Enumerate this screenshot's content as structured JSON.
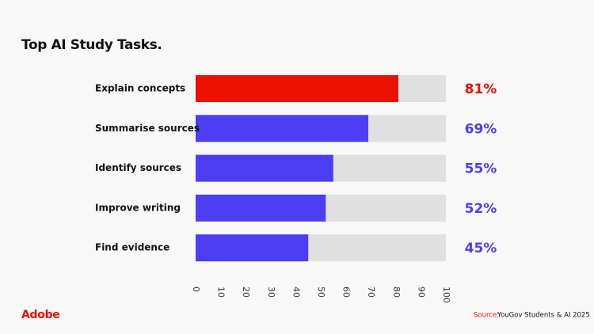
{
  "chart_data": {
    "type": "bar",
    "orientation": "horizontal",
    "title": "Top AI Study Tasks.",
    "categories": [
      "Explain concepts",
      "Summarise sources",
      "Identify sources",
      "Improve writing",
      "Find evidence"
    ],
    "values": [
      81,
      69,
      55,
      52,
      45
    ],
    "value_labels": [
      "81%",
      "69%",
      "55%",
      "52%",
      "45%"
    ],
    "colors": [
      "#eb1000",
      "#4b3ef5",
      "#4b3ef5",
      "#4b3ef5",
      "#4b3ef5"
    ],
    "track_color": "#e0e0e0",
    "xlim": [
      0,
      100
    ],
    "xticks": [
      0,
      10,
      20,
      30,
      40,
      50,
      60,
      70,
      80,
      90,
      100
    ],
    "brand": "Adobe",
    "source_label": "Source:",
    "source": "YouGov Students & AI 2025"
  }
}
